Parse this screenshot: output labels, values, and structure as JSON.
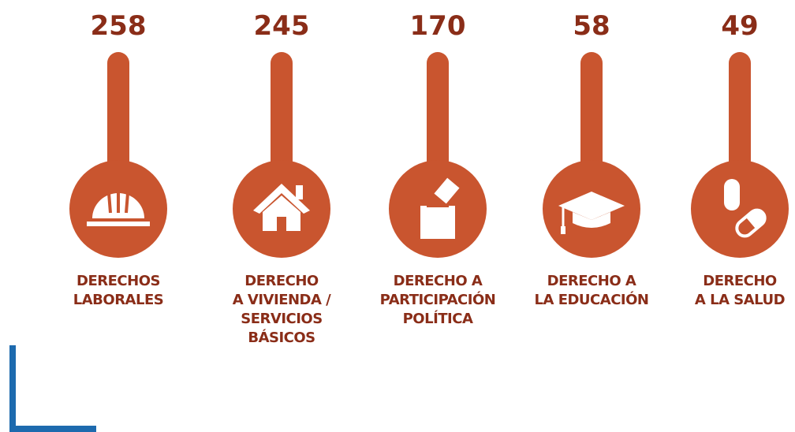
{
  "items": [
    {
      "value": "258",
      "label": [
        "DERECHOS",
        "LABORALES"
      ]
    },
    {
      "value": "245",
      "label": [
        "DERECHO",
        "A VIVIENDA /",
        "SERVICIOS",
        "BÁSICOS"
      ]
    },
    {
      "value": "170",
      "label": [
        "DERECHO A",
        "PARTICIPACIÓN",
        "POLÍTICA"
      ]
    },
    {
      "value": "58",
      "label": [
        "DERECHO A",
        "LA EDUCACIÓN"
      ]
    },
    {
      "value": "49",
      "label": [
        "DERECHO",
        "A LA SALUD"
      ]
    }
  ]
}
